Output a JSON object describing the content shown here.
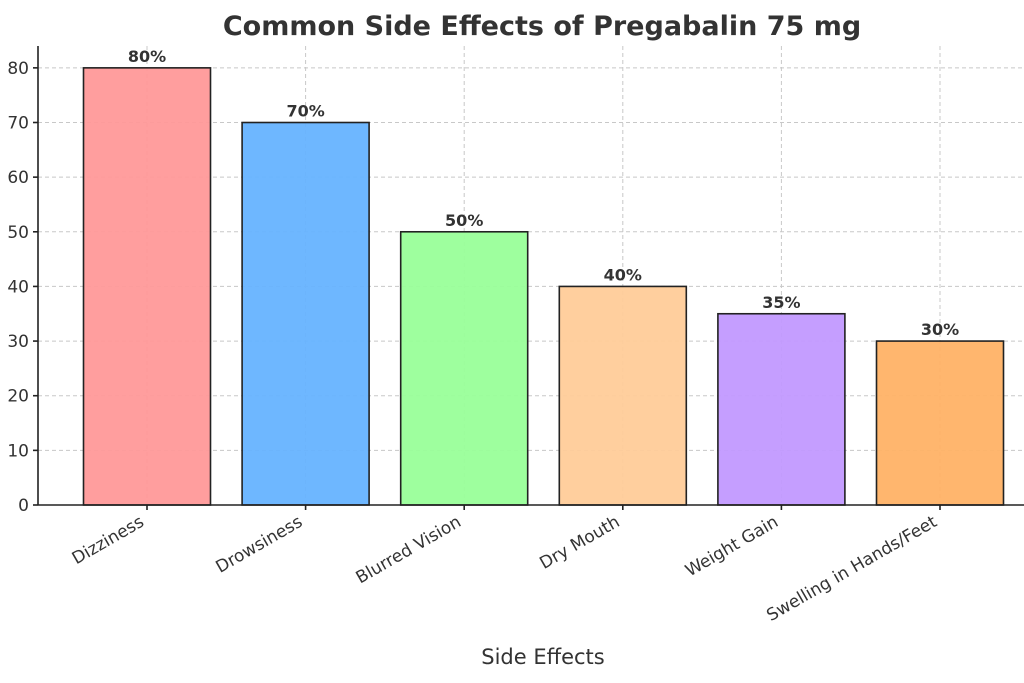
{
  "chart_data": {
    "type": "bar",
    "title": "Common Side Effects of Pregabalin 75 mg",
    "xlabel": "Side Effects",
    "ylabel": "",
    "categories": [
      "Dizziness",
      "Drowsiness",
      "Blurred Vision",
      "Dry Mouth",
      "Weight Gain",
      "Swelling in Hands/Feet"
    ],
    "values": [
      80,
      70,
      50,
      40,
      35,
      30
    ],
    "data_labels": [
      "80%",
      "70%",
      "50%",
      "40%",
      "35%",
      "30%"
    ],
    "colors": [
      "#ff9999",
      "#66b3ff",
      "#99ff99",
      "#ffcc99",
      "#c299ff",
      "#ffb266"
    ],
    "ylim": [
      0,
      84
    ],
    "yticks": [
      0,
      10,
      20,
      30,
      40,
      50,
      60,
      70,
      80
    ],
    "grid": true
  }
}
